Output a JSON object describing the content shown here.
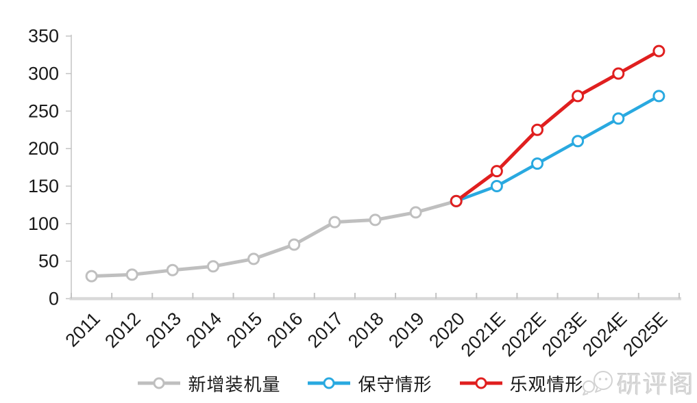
{
  "chart_data": {
    "type": "line",
    "title": "",
    "xlabel": "",
    "ylabel": "",
    "x_categories": [
      "2011",
      "2012",
      "2013",
      "2014",
      "2015",
      "2016",
      "2017",
      "2018",
      "2019",
      "2020",
      "2021E",
      "2022E",
      "2023E",
      "2024E",
      "2025E"
    ],
    "series": [
      {
        "name": "新增装机量",
        "color": "#bfbfbf",
        "marker": "circle",
        "values": [
          30,
          32,
          38,
          43,
          53,
          72,
          102,
          105,
          115,
          130,
          null,
          null,
          null,
          null,
          null
        ]
      },
      {
        "name": "保守情形",
        "color": "#29a9e0",
        "marker": "circle",
        "values": [
          null,
          null,
          null,
          null,
          null,
          null,
          null,
          null,
          null,
          130,
          150,
          180,
          210,
          240,
          270
        ]
      },
      {
        "name": "乐观情形",
        "color": "#e01f1f",
        "marker": "circle",
        "values": [
          null,
          null,
          null,
          null,
          null,
          null,
          null,
          null,
          null,
          130,
          170,
          225,
          270,
          300,
          330
        ]
      }
    ],
    "ylim": [
      0,
      350
    ],
    "yticks": [
      0,
      50,
      100,
      150,
      200,
      250,
      300,
      350
    ],
    "grid": false,
    "legend_position": "bottom",
    "x_tick_label_rotation": -45
  },
  "watermark": {
    "text": "研评阁",
    "icon": "chat-bubbles-icon"
  }
}
